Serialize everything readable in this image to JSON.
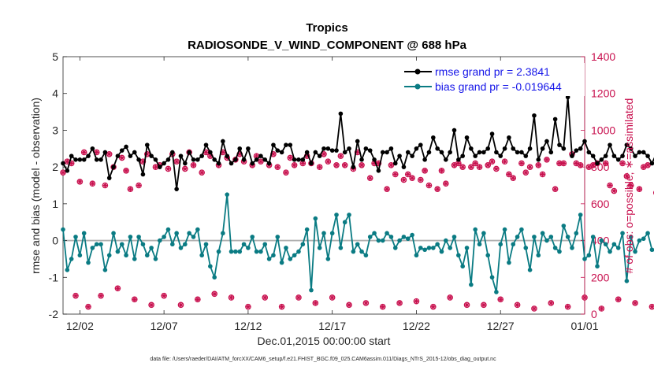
{
  "chart_data": {
    "type": "line",
    "title_line1": "Tropics",
    "title_line2": "RADIOSONDE_V_WIND_COMPONENT @ 688 hPa",
    "xlabel": "Dec.01,2015 00:00:00 start",
    "ylabel_left": "rmse and bias (model - observation)",
    "ylabel_right": "# of obs: o=possible; ∗=assimilated",
    "footnote": "data file: /Users/raeder/DAI/ATM_forcXX/CAM6_setup/f.e21.FHIST_BGC.f09_025.CAM6assim.011/Diags_NTrS_2015-12/obs_diag_output.nc",
    "xlim": [
      0,
      31
    ],
    "ylim_left": [
      -2,
      5
    ],
    "ylim_right": [
      0,
      1400
    ],
    "x_ticks": [
      {
        "value": 1,
        "label": "12/02"
      },
      {
        "value": 6,
        "label": "12/07"
      },
      {
        "value": 11,
        "label": "12/12"
      },
      {
        "value": 16,
        "label": "12/17"
      },
      {
        "value": 21,
        "label": "12/22"
      },
      {
        "value": 26,
        "label": "12/27"
      },
      {
        "value": 31,
        "label": "01/01"
      }
    ],
    "y_ticks_left": [
      "-2",
      "-1",
      "0",
      "1",
      "2",
      "3",
      "4",
      "5"
    ],
    "y_ticks_right": [
      "0",
      "200",
      "400",
      "600",
      "800",
      "1000",
      "1200",
      "1400"
    ],
    "legend": [
      "rmse grand pr = 2.3841",
      "bias grand pr = -0.019644"
    ],
    "x_step": 0.25,
    "series": [
      {
        "name": "rmse",
        "color": "#000000",
        "values": [
          2.1,
          1.9,
          2.3,
          2.2,
          2.2,
          2.2,
          2.3,
          2.5,
          2.2,
          2.2,
          2.4,
          1.7,
          2.0,
          2.3,
          2.45,
          2.55,
          2.3,
          2.4,
          2.2,
          1.8,
          2.6,
          2.3,
          2.2,
          2.0,
          2.1,
          2.2,
          2.4,
          1.4,
          2.3,
          2.1,
          2.4,
          2.2,
          2.2,
          2.3,
          2.6,
          2.4,
          2.2,
          2.1,
          2.7,
          2.3,
          2.1,
          2.2,
          2.5,
          2.2,
          2.5,
          2.1,
          2.2,
          2.3,
          2.2,
          2.1,
          2.6,
          2.45,
          2.4,
          2.6,
          2.6,
          2.2,
          2.2,
          2.2,
          2.4,
          2.1,
          2.4,
          2.3,
          2.5,
          2.5,
          2.45,
          2.45,
          3.45,
          2.4,
          2.5,
          2.0,
          2.7,
          2.2,
          2.5,
          2.45,
          2.2,
          1.9,
          2.4,
          2.4,
          2.5,
          2.1,
          2.3,
          2.0,
          2.4,
          2.3,
          2.5,
          2.6,
          2.2,
          2.4,
          2.8,
          2.5,
          2.4,
          2.2,
          2.4,
          3.0,
          2.2,
          2.3,
          2.8,
          2.5,
          2.3,
          2.4,
          2.4,
          2.5,
          2.9,
          2.4,
          2.3,
          2.5,
          2.8,
          2.5,
          2.4,
          2.4,
          2.3,
          2.5,
          3.4,
          2.2,
          2.5,
          2.7,
          2.4,
          3.3,
          2.6,
          2.5,
          3.9,
          2.3,
          2.45,
          2.5,
          2.7,
          2.4,
          2.3,
          2.1,
          2.2,
          2.3,
          2.6,
          2.3,
          2.2,
          2.3,
          2.6,
          2.5,
          2.3,
          2.4,
          2.4,
          2.3,
          2.1,
          2.35,
          1.9,
          2.4,
          2.3,
          2.4,
          3.0
        ],
        "legend_index": 0
      },
      {
        "name": "bias",
        "color": "#0a7b83",
        "values": [
          0.3,
          -0.8,
          -0.5,
          0.1,
          -0.4,
          0.2,
          -0.6,
          -0.2,
          -0.1,
          -0.1,
          -0.8,
          -0.4,
          0.2,
          -0.3,
          -0.1,
          -0.4,
          0.1,
          -0.5,
          0.1,
          -0.1,
          -0.4,
          -0.2,
          -0.5,
          0.0,
          0.1,
          0.3,
          -0.1,
          0.2,
          -0.2,
          -0.1,
          0.2,
          0.1,
          0.3,
          -0.4,
          -0.1,
          -0.7,
          -1.0,
          -0.3,
          0.2,
          1.25,
          -0.3,
          -0.3,
          -0.3,
          -0.1,
          -0.2,
          0.1,
          -0.3,
          -0.3,
          -0.1,
          -0.5,
          -0.4,
          0.1,
          -0.6,
          -0.2,
          -0.5,
          -0.4,
          -0.3,
          -0.1,
          0.3,
          -1.35,
          0.6,
          -0.2,
          0.2,
          -0.5,
          0.2,
          0.7,
          -0.2,
          0.5,
          0.7,
          -0.3,
          -0.1,
          -0.3,
          -0.4,
          0.1,
          0.2,
          0.0,
          0.0,
          0.2,
          0.1,
          -0.2,
          0.0,
          0.1,
          0.05,
          0.15,
          -0.4,
          -0.2,
          -0.25,
          -0.2,
          -0.2,
          -0.1,
          -0.3,
          0.0,
          -0.2,
          0.1,
          -0.4,
          -0.7,
          -0.2,
          -1.2,
          0.3,
          -0.1,
          0.2,
          -0.4,
          -1.0,
          -1.4,
          -0.1,
          0.3,
          -0.6,
          -0.1,
          0.1,
          0.3,
          -0.2,
          -0.8,
          0.1,
          -0.4,
          0.2,
          0.0,
          0.1,
          -0.2,
          -0.3,
          0.4,
          0.1,
          -0.2,
          0.2,
          0.7,
          -0.5,
          -0.4,
          0.1,
          -0.7,
          0.0,
          -0.1,
          -0.3,
          -0.1,
          -0.2,
          0.2,
          -1.1,
          0.1,
          -0.3,
          0.0,
          0.05,
          0.2,
          -0.25,
          -0.3,
          0.45,
          0.1,
          -0.4,
          -0.2,
          0.2,
          -0.1
        ],
        "legend_index": 1
      },
      {
        "name": "obs possible",
        "axis": "right",
        "color": "#c8104e",
        "marker": "circle",
        "values": [
          770,
          830,
          820,
          100,
          720,
          880,
          40,
          710,
          880,
          100,
          700,
          870,
          800,
          140,
          850,
          780,
          680,
          80,
          700,
          830,
          870,
          50,
          800,
          810,
          100,
          790,
          870,
          830,
          50,
          790,
          880,
          810,
          80,
          770,
          880,
          860,
          110,
          810,
          880,
          850,
          90,
          840,
          870,
          830,
          40,
          810,
          860,
          830,
          90,
          810,
          870,
          800,
          40,
          770,
          850,
          810,
          90,
          820,
          860,
          820,
          60,
          800,
          870,
          830,
          90,
          810,
          860,
          810,
          50,
          790,
          880,
          810,
          60,
          740,
          820,
          820,
          40,
          680,
          810,
          760,
          60,
          730,
          760,
          740,
          70,
          730,
          780,
          700,
          40,
          680,
          780,
          710,
          90,
          810,
          820,
          800,
          50,
          800,
          820,
          800,
          50,
          810,
          830,
          790,
          80,
          830,
          760,
          740,
          50,
          820,
          770,
          800,
          30,
          810,
          760,
          840,
          60,
          680,
          820,
          820,
          40,
          870,
          820,
          810,
          90,
          800,
          810,
          820,
          30,
          820,
          700,
          670,
          80,
          820,
          750,
          700,
          60,
          680,
          800,
          810,
          40,
          660,
          690,
          790,
          20,
          680,
          800,
          0,
          0
        ],
        "every": 1
      }
    ]
  }
}
